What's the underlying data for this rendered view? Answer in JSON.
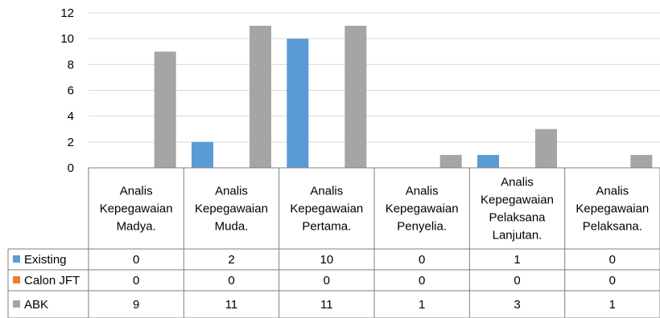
{
  "chart_data": {
    "type": "bar",
    "categories": [
      [
        "Analis",
        "Kepegawaian",
        "Madya."
      ],
      [
        "Analis",
        "Kepegawaian",
        "Muda."
      ],
      [
        "Analis",
        "Kepegawaian",
        "Pertama."
      ],
      [
        "Analis",
        "Kepegawaian",
        "Penyelia."
      ],
      [
        "Analis",
        "Kepegawaian",
        "Pelaksana",
        "Lanjutan."
      ],
      [
        "Analis",
        "Kepegawaian",
        "Pelaksana."
      ]
    ],
    "series": [
      {
        "name": "Existing",
        "color": "#5B9BD5",
        "values": [
          0,
          2,
          10,
          0,
          1,
          0
        ]
      },
      {
        "name": "Calon JFT",
        "color": "#ED7D31",
        "values": [
          0,
          0,
          0,
          0,
          0,
          0
        ]
      },
      {
        "name": "ABK",
        "color": "#A5A5A5",
        "values": [
          9,
          11,
          11,
          1,
          3,
          1
        ]
      }
    ],
    "yticks": [
      0,
      2,
      4,
      6,
      8,
      10,
      12
    ],
    "ylim": [
      0,
      12
    ],
    "grid": true,
    "legend": "data-table",
    "gridColor": "#d9d9d9",
    "borderColor": "#7f7f7f"
  }
}
